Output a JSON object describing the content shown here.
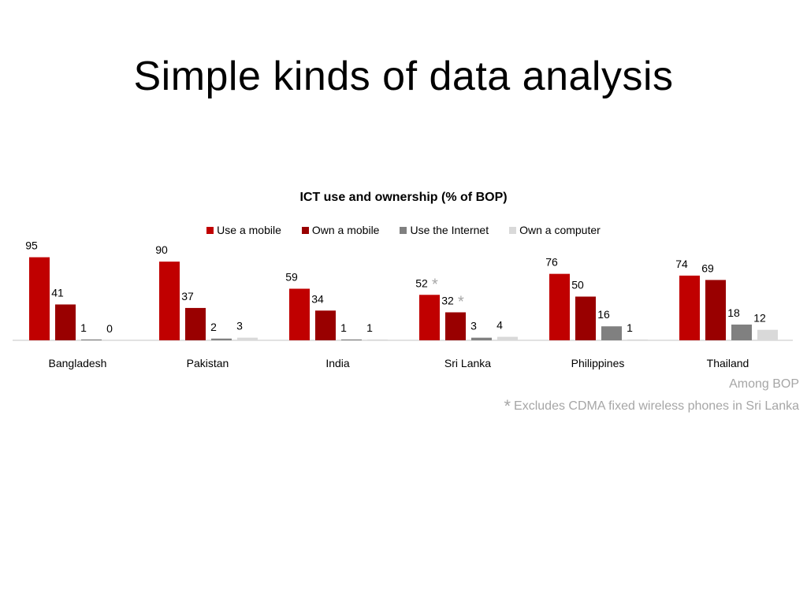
{
  "slide": {
    "title": "Simple kinds of data analysis"
  },
  "notes": {
    "among": "Among BOP",
    "footnote_marker": "*",
    "footnote": "Excludes CDMA fixed wireless phones in Sri Lanka"
  },
  "chart_data": {
    "type": "bar",
    "title": "ICT use and ownership (% of BOP)",
    "xlabel": "",
    "ylabel": "",
    "legend_position": "top",
    "grid": false,
    "categories": [
      "Bangladesh",
      "Pakistan",
      "India",
      "Sri Lanka",
      "Philippines",
      "Thailand"
    ],
    "series": [
      {
        "name": "Use a mobile",
        "color": "#C00000",
        "values": [
          95,
          90,
          59,
          52,
          76,
          74
        ]
      },
      {
        "name": "Own a mobile",
        "color": "#990000",
        "values": [
          41,
          37,
          34,
          32,
          50,
          69
        ]
      },
      {
        "name": "Use the Internet",
        "color": "#808080",
        "values": [
          1,
          2,
          1,
          3,
          16,
          18
        ]
      },
      {
        "name": "Own a computer",
        "color": "#D9D9D9",
        "values": [
          0,
          3,
          1,
          4,
          1,
          12
        ]
      }
    ],
    "annotations": [
      {
        "category": "Sri Lanka",
        "series": "Use a mobile",
        "marker": "*"
      },
      {
        "category": "Sri Lanka",
        "series": "Own a mobile",
        "marker": "*"
      }
    ],
    "ylim": [
      0,
      100
    ]
  }
}
